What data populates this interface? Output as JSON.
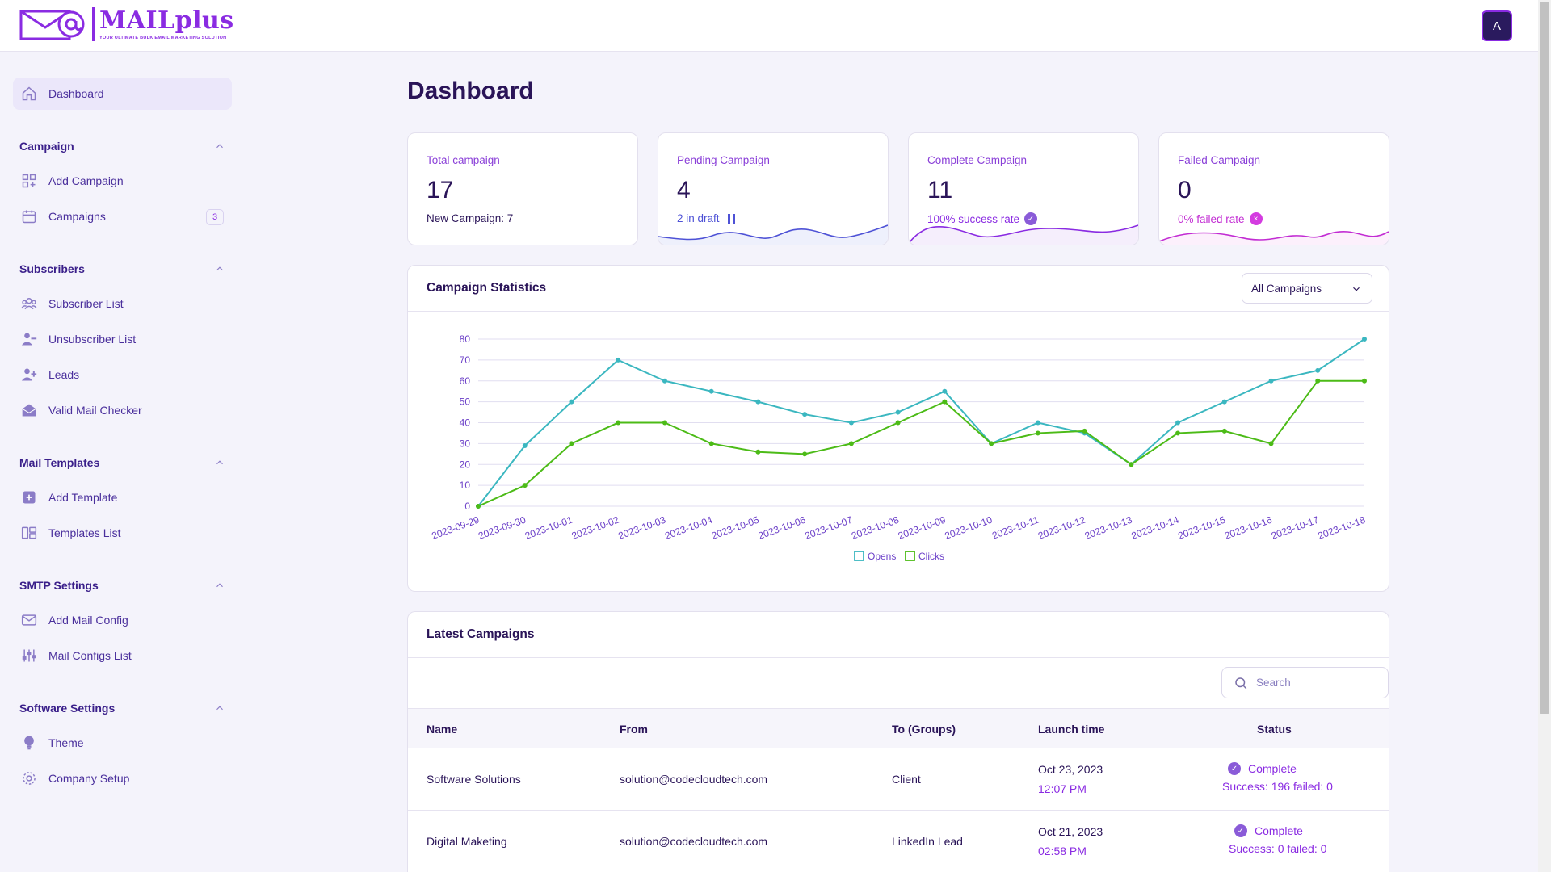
{
  "brand": {
    "name": "MAILplus",
    "tagline": "YOUR ULTIMATE BULK EMAIL MARKETING SOLUTION",
    "accent": "#8a2be2"
  },
  "user": {
    "avatar_initial": "A"
  },
  "sidebar": {
    "dashboard": "Dashboard",
    "sections": [
      {
        "title": "Campaign",
        "items": [
          {
            "label": "Add Campaign",
            "icon": "grid-plus-icon"
          },
          {
            "label": "Campaigns",
            "icon": "calendar-icon",
            "badge": "3"
          }
        ]
      },
      {
        "title": "Subscribers",
        "items": [
          {
            "label": "Subscriber List",
            "icon": "users-icon"
          },
          {
            "label": "Unsubscriber List",
            "icon": "user-minus-icon"
          },
          {
            "label": "Leads",
            "icon": "user-plus-icon"
          },
          {
            "label": "Valid Mail Checker",
            "icon": "open-envelope-icon"
          }
        ]
      },
      {
        "title": "Mail Templates",
        "items": [
          {
            "label": "Add Template",
            "icon": "plus-square-icon"
          },
          {
            "label": "Templates List",
            "icon": "layout-list-icon"
          }
        ]
      },
      {
        "title": "SMTP Settings",
        "items": [
          {
            "label": "Add Mail Config",
            "icon": "mail-icon"
          },
          {
            "label": "Mail Configs List",
            "icon": "sliders-icon"
          }
        ]
      },
      {
        "title": "Software Settings",
        "items": [
          {
            "label": "Theme",
            "icon": "bulb-icon"
          },
          {
            "label": "Company Setup",
            "icon": "settings-icon"
          }
        ]
      }
    ]
  },
  "main": {
    "title": "Dashboard",
    "stats": [
      {
        "label": "Total campaign",
        "value": "17",
        "sub": "New Campaign: 7"
      },
      {
        "label": "Pending Campaign",
        "value": "4",
        "sub": "2 in draft",
        "color": "#4e52d6"
      },
      {
        "label": "Complete Campaign",
        "value": "11",
        "sub": "100% success rate",
        "color": "#8a2be2"
      },
      {
        "label": "Failed Campaign",
        "value": "0",
        "sub": "0% failed rate",
        "color": "#c22cd3"
      }
    ],
    "statistics": {
      "title": "Campaign Statistics",
      "filter_value": "All Campaigns"
    },
    "latest": {
      "title": "Latest Campaigns",
      "search_placeholder": "Search",
      "columns": {
        "name": "Name",
        "from": "From",
        "to": "To (Groups)",
        "launch": "Launch time",
        "status": "Status"
      },
      "rows": [
        {
          "name": "Software Solutions",
          "from": "solution@codecloudtech.com",
          "to": "Client",
          "date": "Oct 23, 2023",
          "time": "12:07 PM",
          "status": "Complete",
          "detail": "Success: 196 failed: 0"
        },
        {
          "name": "Digital Maketing",
          "from": "solution@codecloudtech.com",
          "to": "LinkedIn Lead",
          "date": "Oct 21, 2023",
          "time": "02:58 PM",
          "status": "Complete",
          "detail": "Success: 0 failed: 0"
        }
      ]
    }
  },
  "chart_data": {
    "type": "line",
    "x": [
      "2023-09-29",
      "2023-09-30",
      "2023-10-01",
      "2023-10-02",
      "2023-10-03",
      "2023-10-04",
      "2023-10-05",
      "2023-10-06",
      "2023-10-07",
      "2023-10-08",
      "2023-10-09",
      "2023-10-10",
      "2023-10-11",
      "2023-10-12",
      "2023-10-13",
      "2023-10-14",
      "2023-10-15",
      "2023-10-16",
      "2023-10-17",
      "2023-10-18"
    ],
    "series": [
      {
        "name": "Opens",
        "color": "#3bb7c0",
        "values": [
          0,
          29,
          50,
          70,
          60,
          55,
          50,
          44,
          40,
          45,
          55,
          30,
          40,
          35,
          20,
          40,
          50,
          60,
          65,
          80
        ]
      },
      {
        "name": "Clicks",
        "color": "#4cbb17",
        "values": [
          0,
          10,
          30,
          40,
          40,
          30,
          26,
          25,
          30,
          40,
          50,
          30,
          35,
          36,
          20,
          35,
          36,
          30,
          60,
          60
        ]
      }
    ],
    "yticks": [
      0,
      10,
      20,
      30,
      40,
      50,
      60,
      70,
      80
    ],
    "ylim": [
      0,
      80
    ],
    "grid": true,
    "legend": "bottom"
  }
}
